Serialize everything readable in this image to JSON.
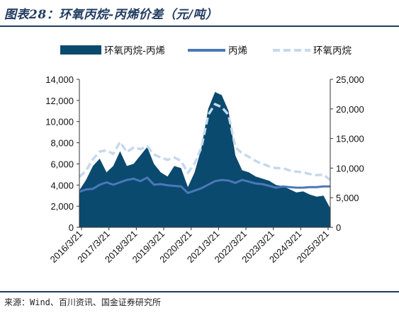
{
  "header": {
    "title": "图表28：环氧丙烷-丙烯价差（元/吨）"
  },
  "footer": {
    "source": "来源：Wind、百川资讯、国金证券研究所"
  },
  "chart_data": {
    "type": "area",
    "legend_position": "top",
    "grid": false,
    "categories": [
      "2016/3/21",
      "2017/3/21",
      "2018/3/21",
      "2019/3/21",
      "2020/3/21",
      "2021/3/21",
      "2022/3/21",
      "2023/3/21",
      "2024/3/21",
      "2025/3/21"
    ],
    "x": [
      "2016/3",
      "2016/6",
      "2016/9",
      "2016/12",
      "2017/3",
      "2017/6",
      "2017/9",
      "2017/12",
      "2018/3",
      "2018/6",
      "2018/9",
      "2018/12",
      "2019/3",
      "2019/6",
      "2019/9",
      "2019/12",
      "2020/3",
      "2020/6",
      "2020/9",
      "2020/12",
      "2021/3",
      "2021/6",
      "2021/9",
      "2021/12",
      "2022/3",
      "2022/6",
      "2022/9",
      "2022/12",
      "2023/3",
      "2023/6",
      "2023/9",
      "2023/12",
      "2024/3",
      "2024/6",
      "2024/9",
      "2024/12",
      "2025/3",
      "2025/5"
    ],
    "y_left_lim": [
      0,
      14000
    ],
    "y_left_ticks": [
      "0",
      "2,000",
      "4,000",
      "6,000",
      "8,000",
      "10,000",
      "12,000",
      "14,000"
    ],
    "y_right_lim": [
      0,
      25000
    ],
    "y_right_ticks": [
      "0",
      "5,000",
      "10,000",
      "15,000",
      "20,000",
      "25,000"
    ],
    "series": [
      {
        "name": "环氧丙烷-丙烯",
        "axis": "left",
        "style": "area",
        "color": "#0b4a6f",
        "values": [
          3500,
          4500,
          5800,
          6500,
          5200,
          5800,
          7200,
          5800,
          6000,
          6800,
          7600,
          6000,
          5200,
          4800,
          5800,
          5600,
          3800,
          5200,
          7500,
          11200,
          12800,
          12500,
          11000,
          6800,
          5400,
          5200,
          4800,
          4600,
          4400,
          4000,
          3900,
          3600,
          3300,
          3400,
          3100,
          2900,
          3000,
          1800
        ]
      },
      {
        "name": "丙烯",
        "axis": "right",
        "style": "line",
        "color": "#4a78b8",
        "values": [
          6000,
          6400,
          6500,
          7200,
          7600,
          7200,
          7600,
          8000,
          8200,
          7800,
          8400,
          7200,
          7300,
          7100,
          7000,
          6900,
          5800,
          6200,
          6600,
          7200,
          7800,
          8000,
          7900,
          7500,
          8000,
          7700,
          7400,
          7300,
          7000,
          6700,
          6900,
          6800,
          6700,
          6700,
          6800,
          6800,
          6900,
          6900
        ]
      },
      {
        "name": "环氧丙烷",
        "axis": "right",
        "style": "line",
        "color": "#c5d9ee",
        "values": [
          8500,
          9600,
          11500,
          12800,
          13000,
          12400,
          14400,
          12700,
          13500,
          13200,
          13700,
          12300,
          11800,
          11400,
          11800,
          11200,
          9200,
          10800,
          13500,
          19000,
          20800,
          20300,
          19000,
          13500,
          12500,
          11900,
          11200,
          10700,
          10300,
          10000,
          10000,
          9600,
          9400,
          9300,
          9000,
          8800,
          8900,
          8000
        ]
      }
    ]
  }
}
